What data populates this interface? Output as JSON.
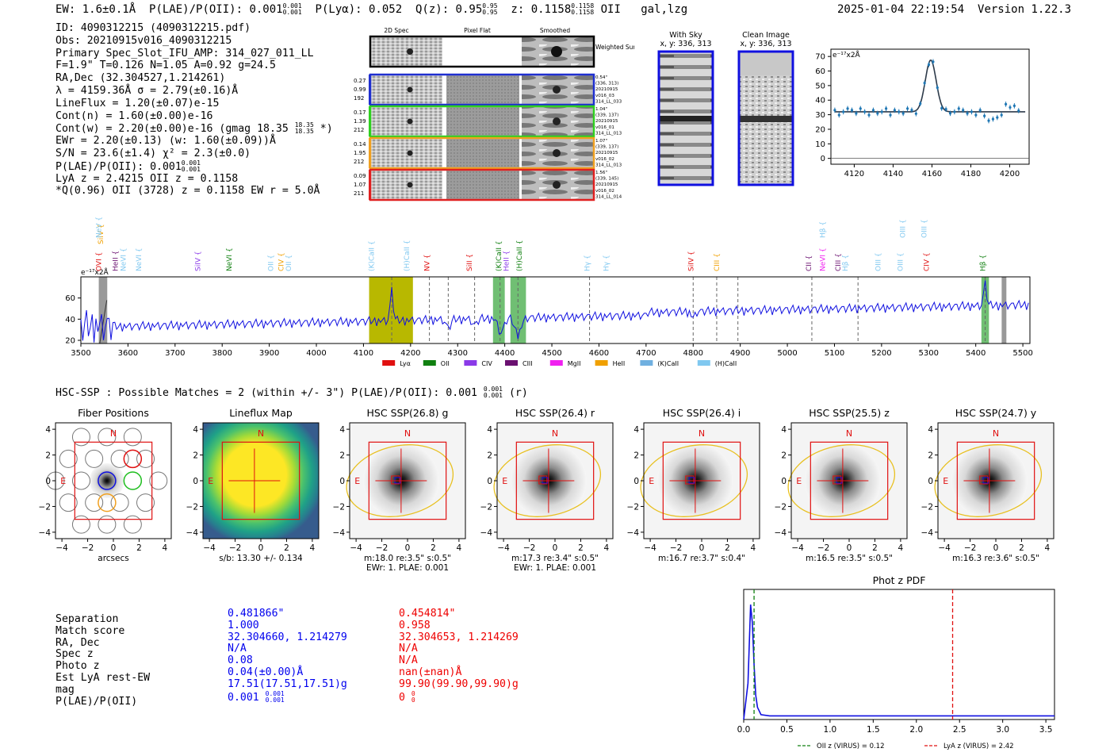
{
  "header": {
    "ew": "EW: 1.6±0.1Å",
    "plae_label": "P(LAE)/P(OII): 0.001",
    "plae_sup": "0.001",
    "plae_sub": "0.001",
    "plya": "P(Lyα): 0.052",
    "q_label": "Q(z): 0.95",
    "q_sup": "0.95",
    "q_sub": "0.95",
    "z_label": "z: 0.1158",
    "z_sup": "0.1158",
    "z_sub": "0.1158",
    "line": "OII",
    "flags": "gal,lzg",
    "timestamp": "2025-01-04 22:19:54",
    "version": "Version 1.22.3"
  },
  "info": {
    "id": "ID: 4090312215 (4090312215.pdf)",
    "obs": "Obs: 20210915v016_4090312215",
    "primary": "Primary Spec_Slot_IFU_AMP: 314_027_011_LL",
    "fit": "F=1.9\"  T=0.126  N=1.05  A=0.92  g=24.5",
    "radec": "RA,Dec (32.304527,1.214261)",
    "lambda": "λ = 4159.36Å  σ = 2.79(±0.16)Å",
    "lineflux": "LineFlux = 1.20(±0.07)e-15",
    "contn": "Cont(n) = 1.60(±0.00)e-16",
    "contw": "Cont(w) = 2.20(±0.00)e-16 (gmag 18.35",
    "contw_sup": "18.35",
    "contw_sub": "18.35",
    "contw_tail": " *)",
    "ewr": "EWr = 2.20(±0.13) (w: 1.60(±0.09))Å",
    "sn": "S/N = 23.6(±1.4)  χ² = 2.3(±0.0)",
    "plae": "P(LAE)/P(OII): 0.001",
    "plae_sup": "0.001",
    "plae_sub": "0.001",
    "lya": "LyA z = 2.4215  OII z = 0.1158",
    "q": "*Q(0.96) OII (3728) z = 0.1158  EW r = 5.0Å"
  },
  "spec2d": {
    "headers": [
      "2D Spec",
      "Pixel Flat",
      "Smoothed"
    ],
    "weighted": "Weighted Sum",
    "rows": [
      {
        "vals": [
          "0.27",
          "0.99",
          "192"
        ],
        "notes": [
          "0.54\"",
          "(336, 313)",
          "20210915",
          "v016_03",
          "314_LL_033"
        ],
        "color": "#1f2fd0"
      },
      {
        "vals": [
          "0.17",
          "1.39",
          "212"
        ],
        "notes": [
          "1.04\"",
          "(339, 137)",
          "20210915",
          "v016_01",
          "314_LL_013"
        ],
        "color": "#2fd020"
      },
      {
        "vals": [
          "0.14",
          "1.95",
          "212"
        ],
        "notes": [
          "1.07\"",
          "(339, 137)",
          "20210915",
          "v016_02",
          "314_LL_013"
        ],
        "color": "#f0a020"
      },
      {
        "vals": [
          "0.09",
          "1.07",
          "211"
        ],
        "notes": [
          "1.56\"",
          "(339, 145)",
          "20210915",
          "v016_02",
          "314_LL_014"
        ],
        "color": "#e02020"
      }
    ]
  },
  "cutouts": {
    "sky_title": "With Sky",
    "sky_coords": "x, y: 336, 313",
    "clean_title": "Clean Image",
    "clean_coords": "x, y: 336, 313"
  },
  "line_fit": {
    "units": "e⁻¹⁷x2Å",
    "xticks": [
      4120,
      4140,
      4160,
      4180,
      4200
    ],
    "yticks": [
      0,
      10,
      20,
      30,
      40,
      50,
      60,
      70
    ],
    "xlim": [
      4108,
      4210
    ],
    "ylim": [
      -4,
      75
    ],
    "center": 4159.36,
    "sigma": 2.79,
    "peak": 35.5,
    "base": 32
  },
  "spectrum": {
    "units": "e⁻¹⁷x2Å",
    "xticks": [
      3500,
      3600,
      3700,
      3800,
      3900,
      4000,
      4100,
      4200,
      4300,
      4400,
      4500,
      4600,
      4700,
      4800,
      4900,
      5000,
      5100,
      5200,
      5300,
      5400,
      5500
    ],
    "yticks": [
      20,
      40,
      60
    ],
    "xlim": [
      3500,
      5515
    ],
    "ylim": [
      17,
      80
    ],
    "legend": [
      {
        "label": "Lyα",
        "color": "#e01010"
      },
      {
        "label": "OII",
        "color": "#108010"
      },
      {
        "label": "CIV",
        "color": "#8a3ae8"
      },
      {
        "label": "CIII",
        "color": "#6a1070"
      },
      {
        "label": "MgII",
        "color": "#f020f0"
      },
      {
        "label": "HeII",
        "color": "#f0a000"
      },
      {
        "label": "(K)CaII",
        "color": "#70b0e0"
      },
      {
        "label": "(H)CaII",
        "color": "#80c8f0"
      }
    ],
    "line_labels": [
      {
        "t": "OVI",
        "x": 3543,
        "c": "#e01010",
        "r": 0
      },
      {
        "t": "SiIV",
        "x": 3547,
        "c": "#f0a000",
        "r": 1
      },
      {
        "t": "NeV",
        "x": 3543,
        "c": "#80c8f0",
        "r": 2
      },
      {
        "t": "HeII",
        "x": 3578,
        "c": "#6a1070",
        "r": 0
      },
      {
        "t": "NeVI",
        "x": 3595,
        "c": "#80c8f0",
        "r": 0
      },
      {
        "t": "NeVI",
        "x": 3628,
        "c": "#80c8f0",
        "r": 0
      },
      {
        "t": "SiIV",
        "x": 3753,
        "c": "#8a3ae8",
        "r": 0
      },
      {
        "t": "NeVI",
        "x": 3820,
        "c": "#108010",
        "r": 0
      },
      {
        "t": "OII",
        "x": 3908,
        "c": "#80c8f0",
        "r": 0
      },
      {
        "t": "CIV",
        "x": 3930,
        "c": "#f0a000",
        "r": 0
      },
      {
        "t": "OII",
        "x": 3946,
        "c": "#80c8f0",
        "r": 0
      },
      {
        "t": "(K)CaII",
        "x": 4122,
        "c": "#80c8f0",
        "r": 0
      },
      {
        "t": "(H)CaII",
        "x": 4197,
        "c": "#80c8f0",
        "r": 0
      },
      {
        "t": "NV",
        "x": 4240,
        "c": "#e01010",
        "r": 0
      },
      {
        "t": "SiII",
        "x": 4330,
        "c": "#e01010",
        "r": 0
      },
      {
        "t": "(K)CaII",
        "x": 4392,
        "c": "#108010",
        "r": 0
      },
      {
        "t": "HeII",
        "x": 4408,
        "c": "#8a3ae8",
        "r": 0
      },
      {
        "t": "(H)CaII",
        "x": 4436,
        "c": "#108010",
        "r": 0
      },
      {
        "t": "Hγ",
        "x": 4580,
        "c": "#80c8f0",
        "r": 0
      },
      {
        "t": "Hγ",
        "x": 4620,
        "c": "#80c8f0",
        "r": 0
      },
      {
        "t": "SiIV",
        "x": 4800,
        "c": "#e01010",
        "r": 0
      },
      {
        "t": "CIII",
        "x": 4855,
        "c": "#f0a000",
        "r": 0
      },
      {
        "t": "CII",
        "x": 5050,
        "c": "#6a1070",
        "r": 0
      },
      {
        "t": "NeVI",
        "x": 5080,
        "c": "#f020f0",
        "r": 0
      },
      {
        "t": "Hβ",
        "x": 5080,
        "c": "#80c8f0",
        "r": 2
      },
      {
        "t": "CIII",
        "x": 5113,
        "c": "#6a1070",
        "r": 0
      },
      {
        "t": "Hβ",
        "x": 5128,
        "c": "#80c8f0",
        "r": 0
      },
      {
        "t": "OIII",
        "x": 5198,
        "c": "#80c8f0",
        "r": 0
      },
      {
        "t": "OIII",
        "x": 5245,
        "c": "#80c8f0",
        "r": 0
      },
      {
        "t": "OIII",
        "x": 5250,
        "c": "#80c8f0",
        "r": 2
      },
      {
        "t": "OIII",
        "x": 5295,
        "c": "#80c8f0",
        "r": 2
      },
      {
        "t": "CIV",
        "x": 5300,
        "c": "#e01010",
        "r": 0
      },
      {
        "t": "Hβ",
        "x": 5420,
        "c": "#108010",
        "r": 0
      }
    ]
  },
  "hsc": {
    "title": "HSC-SSP : Possible Matches = 2 (within +/- 3\")  P(LAE)/P(OII): 0.001",
    "title_sup": "0.001",
    "title_sub": "0.001",
    "title_tail": " (r)",
    "panels": [
      {
        "title": "Fiber Positions",
        "cap1": "arcsecs",
        "cap2": ""
      },
      {
        "title": "Lineflux Map",
        "cap1": "s/b: 13.30 +/- 0.134",
        "cap2": ""
      },
      {
        "title": "HSC SSP(26.8) g",
        "cap1": "m:18.0  re:3.5\"  s:0.5\"",
        "cap2": "EWr: 1. PLAE: 0.001"
      },
      {
        "title": "HSC SSP(26.4) r",
        "cap1": "m:17.3  re:3.4\"  s:0.5\"",
        "cap2": "EWr: 1. PLAE: 0.001"
      },
      {
        "title": "HSC SSP(26.4) i",
        "cap1": "m:16.7  re:3.7\"  s:0.4\"",
        "cap2": ""
      },
      {
        "title": "HSC SSP(25.5) z",
        "cap1": "m:16.5  re:3.5\"  s:0.5\"",
        "cap2": ""
      },
      {
        "title": "HSC SSP(24.7) y",
        "cap1": "m:16.3  re:3.6\"  s:0.5\"",
        "cap2": ""
      }
    ],
    "ticks": [
      -4,
      -2,
      0,
      2,
      4
    ],
    "north": "N",
    "east": "E"
  },
  "matches": {
    "labels": [
      "Separation",
      "Match score",
      "RA, Dec",
      "Spec z",
      "Photo z",
      "Est LyA rest-EW",
      "mag",
      "P(LAE)/P(OII)"
    ],
    "col1": [
      "0.481866\"",
      "1.000",
      "32.304660, 1.214279",
      "N/A",
      "0.08",
      "0.04(±0.00)Å",
      "17.51(17.51,17.51)g",
      "0.001"
    ],
    "col1_sup": "0.001",
    "col1_sub": "0.001",
    "col2": [
      "0.454814\"",
      "0.958",
      "32.304653, 1.214269",
      "N/A",
      "N/A",
      "nan(±nan)Å",
      "99.90(99.90,99.90)g",
      "0"
    ],
    "col2_sup": "0",
    "col2_sub": "0"
  },
  "photz": {
    "title": "Phot z PDF",
    "xticks": [
      0.0,
      0.5,
      1.0,
      1.5,
      2.0,
      2.5,
      3.0,
      3.5
    ],
    "xlim": [
      0,
      3.6
    ],
    "oii_z": 0.12,
    "lya_z": 2.42,
    "legend_oii": "OII z (VIRUS) = 0.12",
    "legend_lya": "LyA z (VIRUS) = 2.42",
    "pdf_x": [
      0.0,
      0.05,
      0.08,
      0.1,
      0.12,
      0.14,
      0.16,
      0.2,
      0.3,
      3.6
    ],
    "pdf_y": [
      0,
      0.3,
      0.95,
      0.8,
      0.45,
      0.2,
      0.1,
      0.04,
      0.03,
      0.03
    ]
  },
  "colors": {
    "blue": "#1010e0",
    "red": "#e01010",
    "green": "#108010",
    "olive": "#b8b800",
    "gold": "#e8c020"
  }
}
